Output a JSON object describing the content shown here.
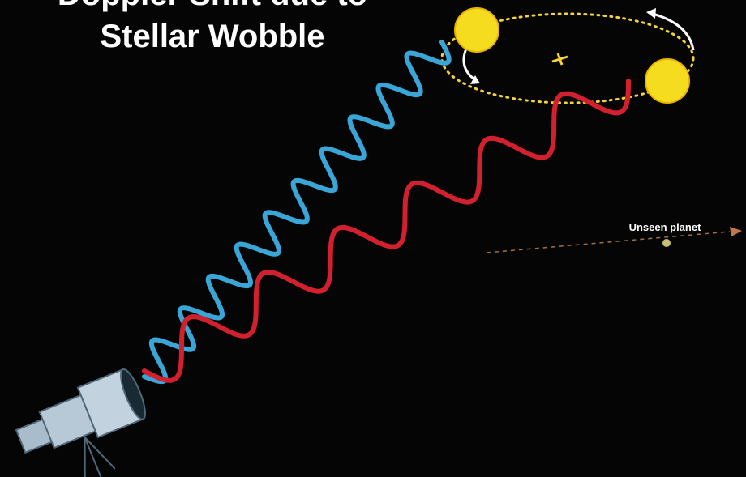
{
  "title": {
    "line1": "Doppler Shift due to",
    "line2": "Stellar Wobble"
  },
  "labels": {
    "planet": "Unseen planet"
  }
}
